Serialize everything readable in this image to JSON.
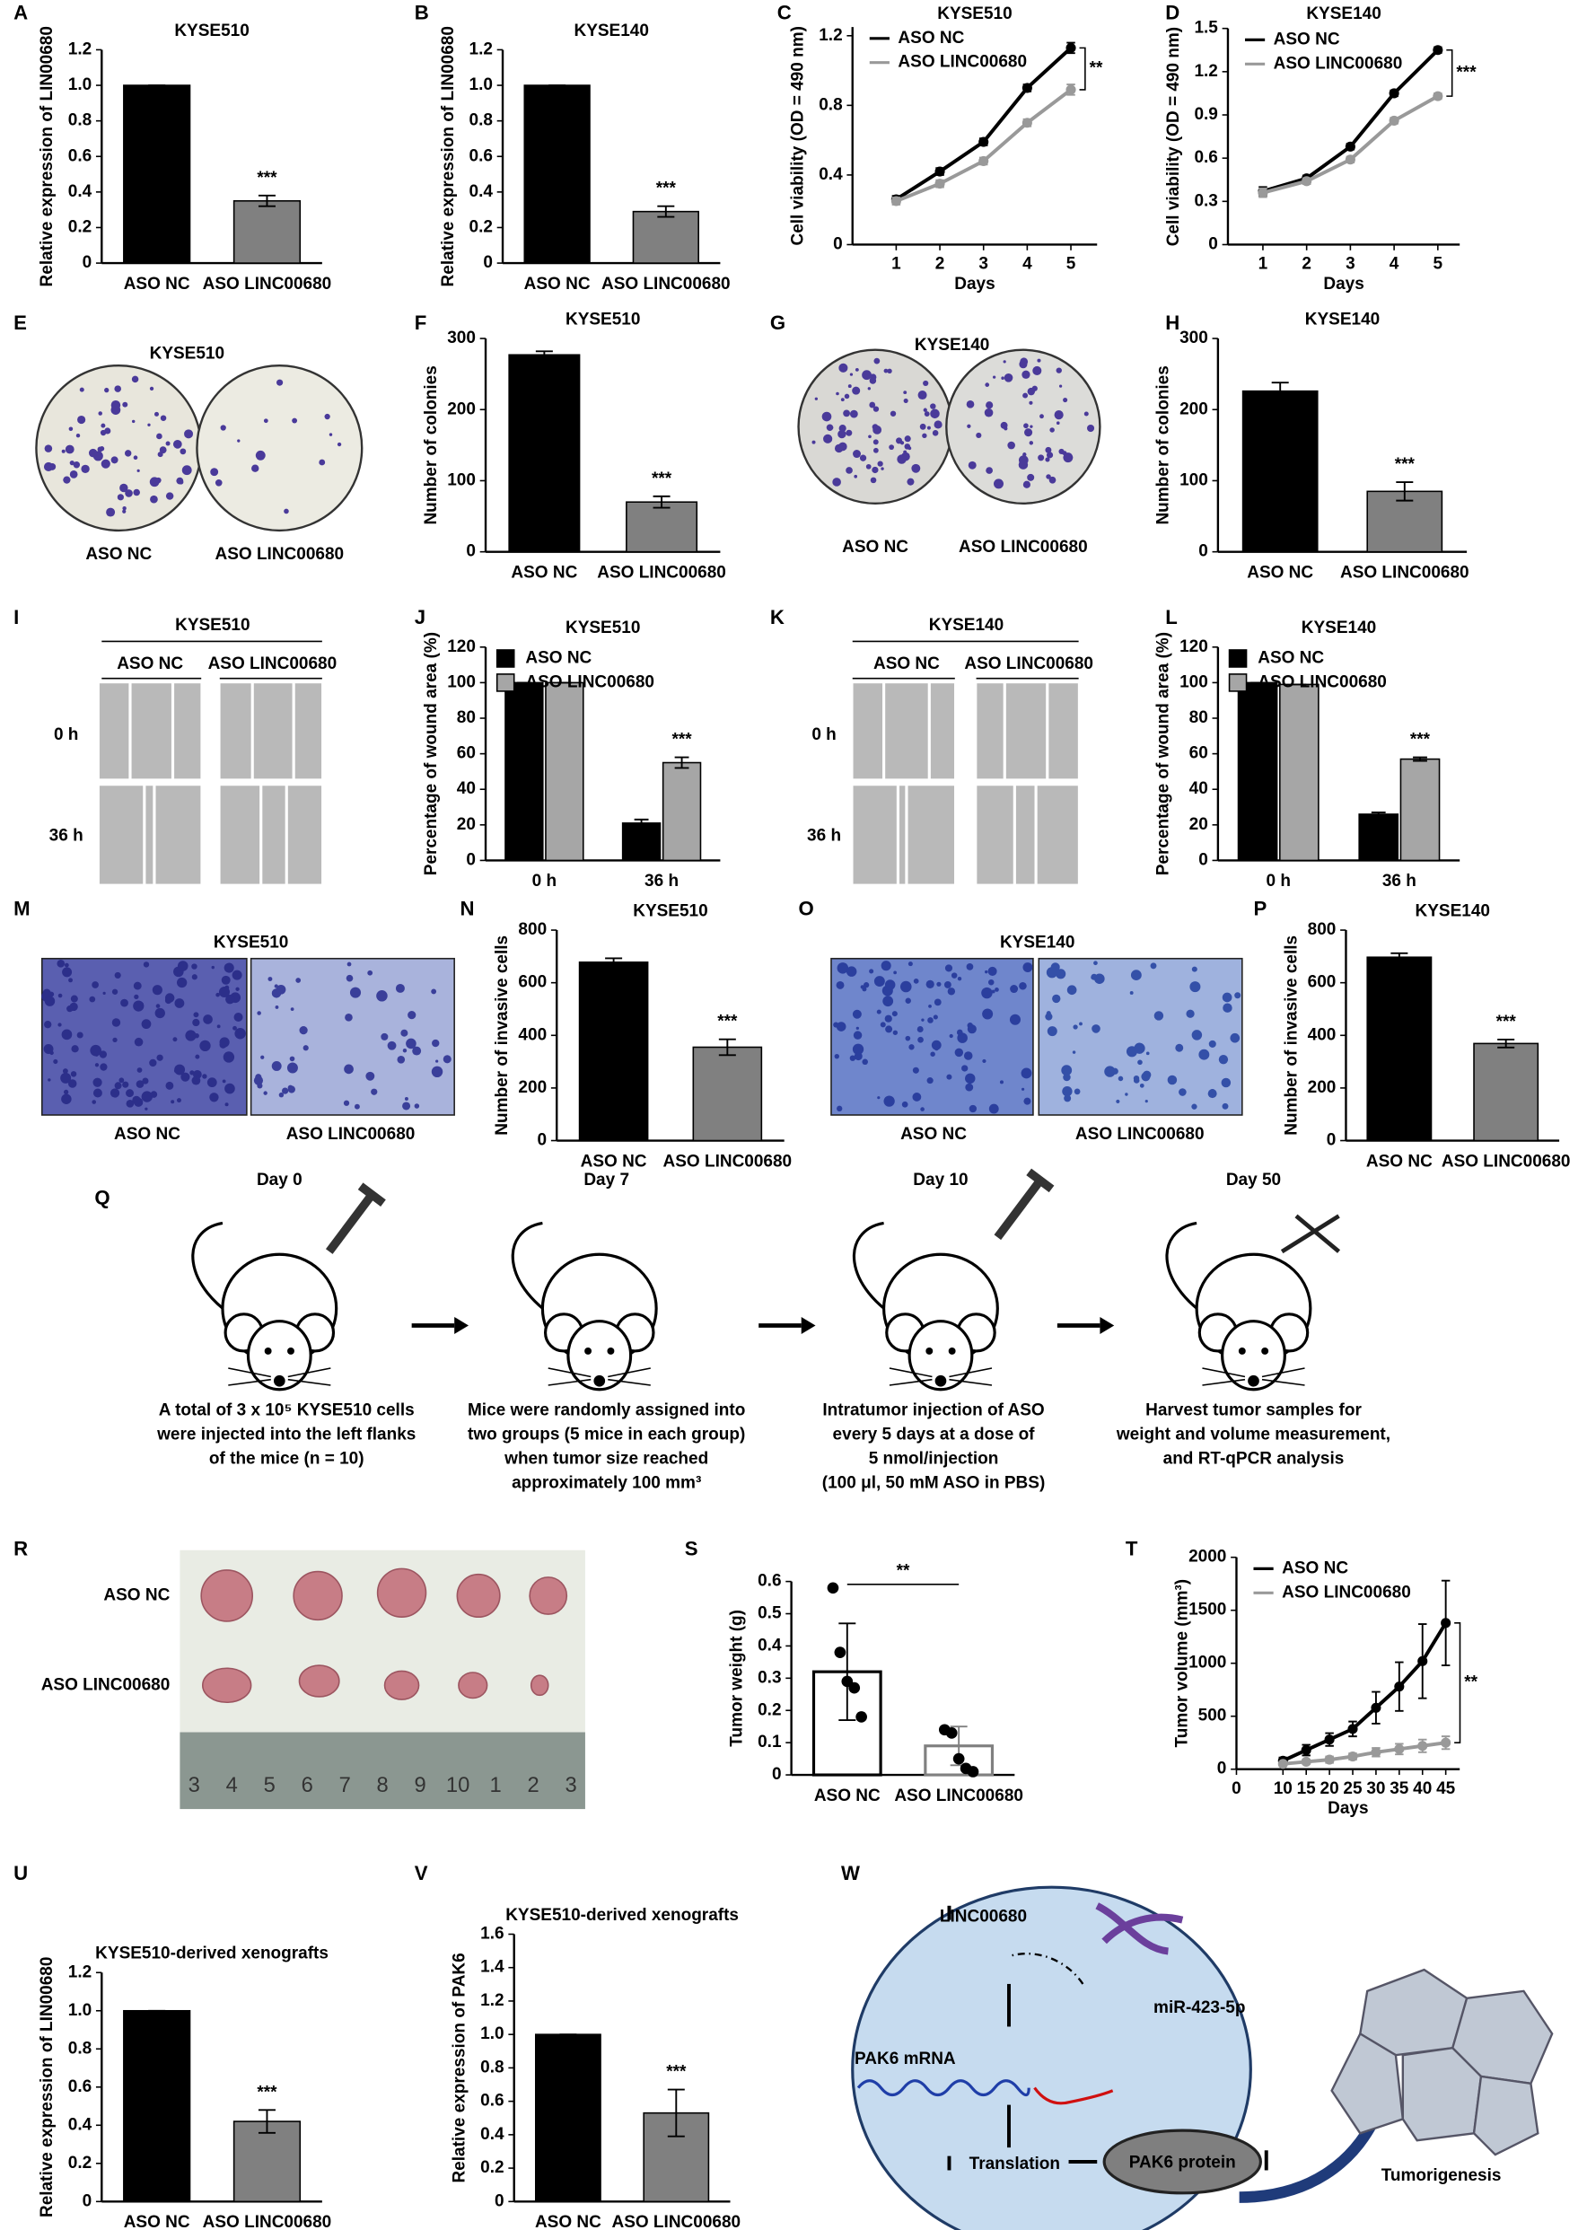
{
  "chart_data": [
    {
      "type": "bar",
      "panel": "A",
      "title": "KYSE510",
      "ylabel": "Relative expression of LIN00680",
      "categories": [
        "ASO NC",
        "ASO LINC00680"
      ],
      "values": [
        1.0,
        0.35
      ],
      "errors": [
        0.0,
        0.03
      ],
      "colors": [
        "#000000",
        "#808080"
      ],
      "filled": true,
      "ylim": [
        0,
        1.2
      ],
      "yticks": [
        0,
        0.2,
        0.4,
        0.6,
        0.8,
        {
          "value": 1.0,
          "label": "1.0"
        },
        1.2
      ],
      "annotation": "***"
    },
    {
      "type": "bar",
      "panel": "B",
      "title": "KYSE140",
      "ylabel": "Relative expression of LIN00680",
      "categories": [
        "ASO NC",
        "ASO LINC00680"
      ],
      "values": [
        1.0,
        0.29
      ],
      "errors": [
        0.0,
        0.03
      ],
      "colors": [
        "#000000",
        "#808080"
      ],
      "filled": true,
      "ylim": [
        0,
        1.2
      ],
      "yticks": [
        0,
        0.2,
        0.4,
        0.6,
        0.8,
        {
          "value": 1.0,
          "label": "1.0"
        },
        1.2
      ],
      "annotation": "***"
    },
    {
      "type": "line",
      "panel": "C",
      "title": "KYSE510",
      "ylabel": "Cell viability (OD = 490 nm)",
      "xlabel": "Days",
      "x": [
        1,
        2,
        3,
        4,
        5
      ],
      "xlim": [
        0,
        5.6
      ],
      "xticks": [
        1,
        2,
        3,
        4,
        5
      ],
      "ylim": [
        0,
        1.25
      ],
      "yticks": [
        0,
        0.4,
        0.8,
        1.2
      ],
      "legend": "upper left",
      "annotation": "**",
      "series": [
        {
          "name": "ASO NC",
          "color": "#000000",
          "values": [
            0.26,
            0.42,
            0.59,
            0.9,
            1.13
          ],
          "errors": [
            0.02,
            0.02,
            0.02,
            0.02,
            0.03
          ]
        },
        {
          "name": "ASO LINC00680",
          "color": "#999999",
          "values": [
            0.25,
            0.35,
            0.48,
            0.7,
            0.89
          ],
          "errors": [
            0.02,
            0.02,
            0.02,
            0.02,
            0.03
          ]
        }
      ]
    },
    {
      "type": "line",
      "panel": "D",
      "title": "KYSE140",
      "ylabel": "Cell viability (OD = 490 nm)",
      "xlabel": "Days",
      "x": [
        1,
        2,
        3,
        4,
        5
      ],
      "xlim": [
        0.2,
        5.5
      ],
      "xticks": [
        1,
        2,
        3,
        4,
        5
      ],
      "ylim": [
        0,
        1.5
      ],
      "yticks": [
        0,
        0.3,
        0.6,
        0.9,
        1.2,
        1.5
      ],
      "legend": "upper left",
      "annotation": "***",
      "series": [
        {
          "name": "ASO NC",
          "color": "#000000",
          "values": [
            0.37,
            0.46,
            0.68,
            1.05,
            1.35
          ],
          "errors": [
            0.03,
            0.02,
            0.02,
            0.02,
            0.02
          ]
        },
        {
          "name": "ASO LINC00680",
          "color": "#999999",
          "values": [
            0.36,
            0.44,
            0.59,
            0.86,
            1.03
          ],
          "errors": [
            0.03,
            0.02,
            0.02,
            0.02,
            0.02
          ]
        }
      ]
    },
    {
      "type": "bar",
      "panel": "F",
      "title": "KYSE510",
      "ylabel": "Number of colonies",
      "categories": [
        "ASO NC",
        "ASO LINC00680"
      ],
      "values": [
        277,
        70
      ],
      "errors": [
        5,
        8
      ],
      "colors": [
        "#000000",
        "#808080"
      ],
      "filled": true,
      "ylim": [
        0,
        300
      ],
      "yticks": [
        0,
        100,
        200,
        300
      ],
      "annotation": "***"
    },
    {
      "type": "bar",
      "panel": "H",
      "title": "KYSE140",
      "ylabel": "Number of colonies",
      "categories": [
        "ASO NC",
        "ASO LINC00680"
      ],
      "values": [
        226,
        85
      ],
      "errors": [
        12,
        13
      ],
      "colors": [
        "#000000",
        "#808080"
      ],
      "filled": true,
      "ylim": [
        0,
        300
      ],
      "yticks": [
        0,
        100,
        200,
        300
      ],
      "annotation": "***"
    },
    {
      "type": "grouped-bar",
      "panel": "J",
      "title": "KYSE510",
      "ylabel": "Percentage of wound area (%)",
      "categories": [
        "0 h",
        "36 h"
      ],
      "ylim": [
        0,
        120
      ],
      "yticks": [
        0,
        20,
        40,
        60,
        80,
        100,
        120
      ],
      "legend": "upper left",
      "annotation": "***",
      "series": [
        {
          "name": "ASO NC",
          "color": "#000000",
          "values": [
            100,
            21
          ],
          "errors": [
            0,
            2
          ]
        },
        {
          "name": "ASO LINC00680",
          "color": "#a6a6a6",
          "values": [
            100,
            55
          ],
          "errors": [
            0,
            3
          ]
        }
      ]
    },
    {
      "type": "grouped-bar",
      "panel": "L",
      "title": "KYSE140",
      "ylabel": "Percentage of wound area (%)",
      "categories": [
        "0 h",
        "36 h"
      ],
      "ylim": [
        0,
        120
      ],
      "yticks": [
        0,
        20,
        40,
        60,
        80,
        100,
        120
      ],
      "legend": "upper left",
      "annotation": "***",
      "series": [
        {
          "name": "ASO NC",
          "color": "#000000",
          "values": [
            100,
            26
          ],
          "errors": [
            0,
            1
          ]
        },
        {
          "name": "ASO LINC00680",
          "color": "#a6a6a6",
          "values": [
            99,
            57
          ],
          "errors": [
            0,
            1
          ]
        }
      ]
    },
    {
      "type": "bar",
      "panel": "N",
      "title": "KYSE510",
      "ylabel": "Number of invasive cells",
      "categories": [
        "ASO NC",
        "ASO LINC00680"
      ],
      "values": [
        678,
        355
      ],
      "errors": [
        15,
        30
      ],
      "colors": [
        "#000000",
        "#808080"
      ],
      "filled": true,
      "ylim": [
        0,
        800
      ],
      "yticks": [
        0,
        200,
        400,
        600,
        800
      ],
      "annotation": "***"
    },
    {
      "type": "bar",
      "panel": "P",
      "title": "KYSE140",
      "ylabel": "Number of invasive cells",
      "categories": [
        "ASO NC",
        "ASO LINC00680"
      ],
      "values": [
        697,
        369
      ],
      "errors": [
        15,
        15
      ],
      "colors": [
        "#000000",
        "#808080"
      ],
      "filled": true,
      "ylim": [
        0,
        800
      ],
      "yticks": [
        0,
        200,
        400,
        600,
        800
      ],
      "annotation": "***"
    },
    {
      "type": "bar",
      "panel": "S",
      "ylabel": "Tumor weight (g)",
      "categories": [
        "ASO NC",
        "ASO LINC00680"
      ],
      "values": [
        0.32,
        0.09
      ],
      "errors": [
        0.15,
        0.06
      ],
      "colors": [
        "#000000",
        "#808080"
      ],
      "filled": false,
      "points": [
        [
          0.58,
          0.38,
          0.29,
          0.27,
          0.18
        ],
        [
          0.14,
          0.13,
          0.05,
          0.02,
          0.01
        ]
      ],
      "ylim": [
        0,
        0.6
      ],
      "yticks": [
        0,
        0.1,
        0.2,
        0.3,
        0.4,
        0.5,
        0.6
      ],
      "annotation": "**"
    },
    {
      "type": "line",
      "panel": "T",
      "ylabel": "Tumor volume (mm³)",
      "xlabel": "Days",
      "x": [
        10,
        15,
        20,
        25,
        30,
        35,
        40,
        45
      ],
      "xlim": [
        0,
        48
      ],
      "xticks": [
        0,
        10,
        15,
        20,
        25,
        30,
        35,
        40,
        45
      ],
      "ylim": [
        0,
        2000
      ],
      "yticks": [
        0,
        500,
        1000,
        1500,
        2000
      ],
      "legend": "upper left",
      "annotation": "**",
      "series": [
        {
          "name": "ASO NC",
          "color": "#000000",
          "values": [
            80,
            180,
            280,
            380,
            580,
            780,
            1020,
            1380
          ],
          "errors": [
            30,
            50,
            60,
            70,
            150,
            230,
            350,
            400
          ]
        },
        {
          "name": "ASO LINC00680",
          "color": "#999999",
          "values": [
            50,
            70,
            90,
            120,
            160,
            190,
            220,
            250
          ],
          "errors": [
            20,
            20,
            30,
            30,
            40,
            50,
            60,
            60
          ]
        }
      ]
    },
    {
      "type": "bar",
      "panel": "U",
      "title": "KYSE510-derived xenografts",
      "ylabel": "Relative expression of LIN00680",
      "categories": [
        "ASO NC",
        "ASO LINC00680"
      ],
      "values": [
        1.0,
        0.42
      ],
      "errors": [
        0.0,
        0.06
      ],
      "colors": [
        "#000000",
        "#808080"
      ],
      "filled": true,
      "ylim": [
        0,
        1.2
      ],
      "yticks": [
        0,
        0.2,
        0.4,
        0.6,
        0.8,
        {
          "value": 1.0,
          "label": "1.0"
        },
        1.2
      ],
      "annotation": "***"
    },
    {
      "type": "bar",
      "panel": "V",
      "title": "KYSE510-derived xenografts",
      "ylabel": "Relative expression of PAK6",
      "categories": [
        "ASO NC",
        "ASO LINC00680"
      ],
      "values": [
        1.0,
        0.53
      ],
      "errors": [
        0.0,
        0.14
      ],
      "colors": [
        "#000000",
        "#808080"
      ],
      "filled": true,
      "ylim": [
        0,
        1.6
      ],
      "yticks": [
        0,
        0.2,
        0.4,
        0.6,
        0.8,
        {
          "value": 1.0,
          "label": "1.0"
        },
        1.2,
        1.4,
        1.6
      ],
      "annotation": "***"
    }
  ],
  "panels": {
    "E": {
      "label": "E",
      "title": "KYSE510",
      "captions": [
        "ASO NC",
        "ASO LINC00680"
      ]
    },
    "G": {
      "label": "G",
      "title": "KYSE140",
      "captions": [
        "ASO NC",
        "ASO LINC00680"
      ]
    },
    "I": {
      "label": "I",
      "title": "KYSE510",
      "columns": [
        "ASO NC",
        "ASO LINC00680"
      ],
      "rows": [
        "0 h",
        "36 h"
      ]
    },
    "K": {
      "label": "K",
      "title": "KYSE140",
      "columns": [
        "ASO NC",
        "ASO LINC00680"
      ],
      "rows": [
        "0 h",
        "36 h"
      ]
    },
    "M": {
      "label": "M",
      "title": "KYSE510",
      "captions": [
        "ASO NC",
        "ASO LINC00680"
      ]
    },
    "O": {
      "label": "O",
      "title": "KYSE140",
      "captions": [
        "ASO NC",
        "ASO LINC00680"
      ]
    },
    "Q": {
      "label": "Q",
      "days": [
        "Day 0",
        "Day 7",
        "Day 10",
        "Day 50"
      ],
      "captions": [
        [
          "A total of 3 x 10⁵ KYSE510 cells",
          "were injected into the left flanks",
          "of the mice (n = 10)"
        ],
        [
          "Mice were randomly assigned into",
          "two groups (5 mice in each group)",
          "when tumor size reached",
          "approximately 100 mm³"
        ],
        [
          "Intratumor injection of ASO",
          "every 5 days at a dose of",
          "5 nmol/injection",
          "(100 μl, 50 mM ASO in PBS)"
        ],
        [
          "Harvest tumor samples for",
          "weight and volume measurement,",
          "and RT-qPCR analysis"
        ]
      ]
    },
    "R": {
      "label": "R",
      "rows": [
        "ASO NC",
        "ASO LINC00680"
      ],
      "ruler": [
        "3",
        "4",
        "5",
        "6",
        "7",
        "8",
        "9",
        "10",
        "1",
        "2",
        "3"
      ]
    },
    "W": {
      "label": "W",
      "lncrna": "LINC00680",
      "mirna": "miR-423-5p",
      "mrna": "PAK6 mRNA",
      "protein": "PAK6 protein",
      "translation": "Translation",
      "outcome": "Tumorigenesis"
    }
  }
}
